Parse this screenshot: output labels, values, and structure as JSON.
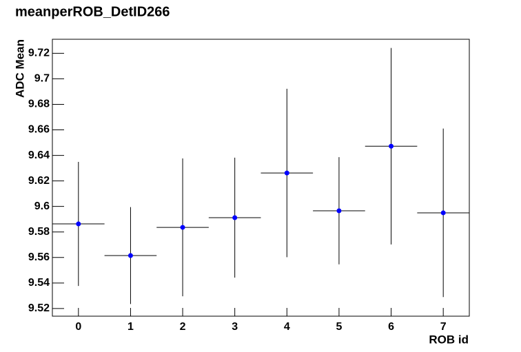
{
  "chart_data": {
    "type": "errorbar",
    "title": "meanperROB_DetID266",
    "x_label": "ROB id",
    "y_label": "ADC Mean",
    "x": [
      0,
      1,
      2,
      3,
      4,
      5,
      6,
      7
    ],
    "x_errors": [
      0.5,
      0.5,
      0.5,
      0.5,
      0.5,
      0.5,
      0.5,
      0.5
    ],
    "series": [
      {
        "color": "#0000ff",
        "values": [
          9.5863,
          9.5615,
          9.5836,
          9.5912,
          9.6262,
          9.5966,
          9.6472,
          9.595
        ],
        "errors": [
          0.0486,
          0.038,
          0.054,
          0.047,
          0.066,
          0.042,
          0.077,
          0.066
        ]
      }
    ],
    "xlim": [
      -0.5,
      7.5
    ],
    "xticks": [
      0,
      1,
      2,
      3,
      4,
      5,
      6,
      7
    ],
    "ylim": [
      9.514,
      9.731
    ],
    "yticks": [
      9.52,
      9.54,
      9.56,
      9.58,
      9.6,
      9.62,
      9.64,
      9.66,
      9.68,
      9.7,
      9.72
    ]
  }
}
